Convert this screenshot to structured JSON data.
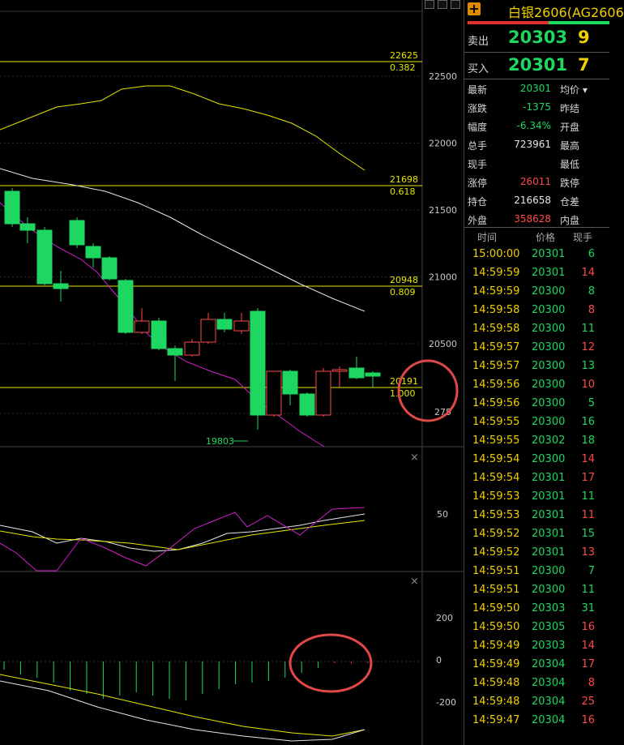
{
  "title": "白银2606(AG2606",
  "window_buttons": [
    "minimize-icon",
    "restore-icon",
    "close-icon"
  ],
  "chart": {
    "y_axis_ticks": [
      "22500",
      "22000",
      "21500",
      "21000",
      "20500",
      "275"
    ],
    "fib_levels": [
      {
        "value": "22625",
        "ratio": "0.382"
      },
      {
        "value": "21698",
        "ratio": "0.618"
      },
      {
        "value": "20948",
        "ratio": "0.809"
      },
      {
        "value": "20191",
        "ratio": "1.000"
      }
    ],
    "low_label": "19803",
    "kdj_ticks": [
      "50"
    ],
    "macd_ticks": [
      "200",
      "0",
      "-200"
    ]
  },
  "quote": {
    "sell_label": "卖出",
    "sell_price": "20303",
    "sell_vol": "9",
    "buy_label": "买入",
    "buy_price": "20301",
    "buy_vol": "7"
  },
  "stats": [
    {
      "l": "最新",
      "v": "20301",
      "vc": "g",
      "r": "均价 ▾"
    },
    {
      "l": "涨跌",
      "v": "-1375",
      "vc": "g",
      "r": "昨结"
    },
    {
      "l": "幅度",
      "v": "-6.34%",
      "vc": "g",
      "r": "开盘"
    },
    {
      "l": "总手",
      "v": "723961",
      "vc": "w",
      "r": "最高"
    },
    {
      "l": "现手",
      "v": "",
      "vc": "w",
      "r": "最低"
    },
    {
      "l": "涨停",
      "v": "26011",
      "vc": "r",
      "r": "跌停"
    },
    {
      "l": "持仓",
      "v": "216658",
      "vc": "w",
      "r": "仓差"
    },
    {
      "l": "外盘",
      "v": "358628",
      "vc": "r",
      "r": "内盘"
    }
  ],
  "ticks_header": {
    "time": "时间",
    "price": "价格",
    "vol": "现手"
  },
  "ticks": [
    {
      "time": "15:00:00",
      "price": "20301",
      "pc": "g",
      "vol": "6",
      "vc": "g"
    },
    {
      "time": "14:59:59",
      "price": "20301",
      "pc": "g",
      "vol": "14",
      "vc": "r"
    },
    {
      "time": "14:59:59",
      "price": "20300",
      "pc": "g",
      "vol": "8",
      "vc": "g"
    },
    {
      "time": "14:59:58",
      "price": "20300",
      "pc": "g",
      "vol": "8",
      "vc": "r"
    },
    {
      "time": "14:59:58",
      "price": "20300",
      "pc": "g",
      "vol": "11",
      "vc": "g"
    },
    {
      "time": "14:59:57",
      "price": "20300",
      "pc": "g",
      "vol": "12",
      "vc": "r"
    },
    {
      "time": "14:59:57",
      "price": "20300",
      "pc": "g",
      "vol": "13",
      "vc": "g"
    },
    {
      "time": "14:59:56",
      "price": "20300",
      "pc": "g",
      "vol": "10",
      "vc": "r"
    },
    {
      "time": "14:59:56",
      "price": "20300",
      "pc": "g",
      "vol": "5",
      "vc": "g"
    },
    {
      "time": "14:59:55",
      "price": "20300",
      "pc": "g",
      "vol": "16",
      "vc": "g"
    },
    {
      "time": "14:59:55",
      "price": "20302",
      "pc": "g",
      "vol": "18",
      "vc": "g"
    },
    {
      "time": "14:59:54",
      "price": "20300",
      "pc": "g",
      "vol": "14",
      "vc": "r"
    },
    {
      "time": "14:59:54",
      "price": "20301",
      "pc": "g",
      "vol": "17",
      "vc": "r"
    },
    {
      "time": "14:59:53",
      "price": "20301",
      "pc": "g",
      "vol": "11",
      "vc": "g"
    },
    {
      "time": "14:59:53",
      "price": "20301",
      "pc": "g",
      "vol": "11",
      "vc": "r"
    },
    {
      "time": "14:59:52",
      "price": "20301",
      "pc": "g",
      "vol": "15",
      "vc": "g"
    },
    {
      "time": "14:59:52",
      "price": "20301",
      "pc": "g",
      "vol": "13",
      "vc": "r"
    },
    {
      "time": "14:59:51",
      "price": "20300",
      "pc": "g",
      "vol": "7",
      "vc": "g"
    },
    {
      "time": "14:59:51",
      "price": "20300",
      "pc": "g",
      "vol": "11",
      "vc": "g"
    },
    {
      "time": "14:59:50",
      "price": "20303",
      "pc": "g",
      "vol": "31",
      "vc": "g"
    },
    {
      "time": "14:59:50",
      "price": "20305",
      "pc": "g",
      "vol": "16",
      "vc": "r"
    },
    {
      "time": "14:59:49",
      "price": "20303",
      "pc": "g",
      "vol": "14",
      "vc": "r"
    },
    {
      "time": "14:59:49",
      "price": "20304",
      "pc": "g",
      "vol": "17",
      "vc": "r"
    },
    {
      "time": "14:59:48",
      "price": "20304",
      "pc": "g",
      "vol": "8",
      "vc": "r"
    },
    {
      "time": "14:59:48",
      "price": "20304",
      "pc": "g",
      "vol": "25",
      "vc": "r"
    },
    {
      "time": "14:59:47",
      "price": "20304",
      "pc": "g",
      "vol": "16",
      "vc": "r"
    }
  ],
  "colors": {
    "up": "#ff4848",
    "down": "#1ed760",
    "fib": "#e6e600",
    "annotation": "#e04848"
  }
}
